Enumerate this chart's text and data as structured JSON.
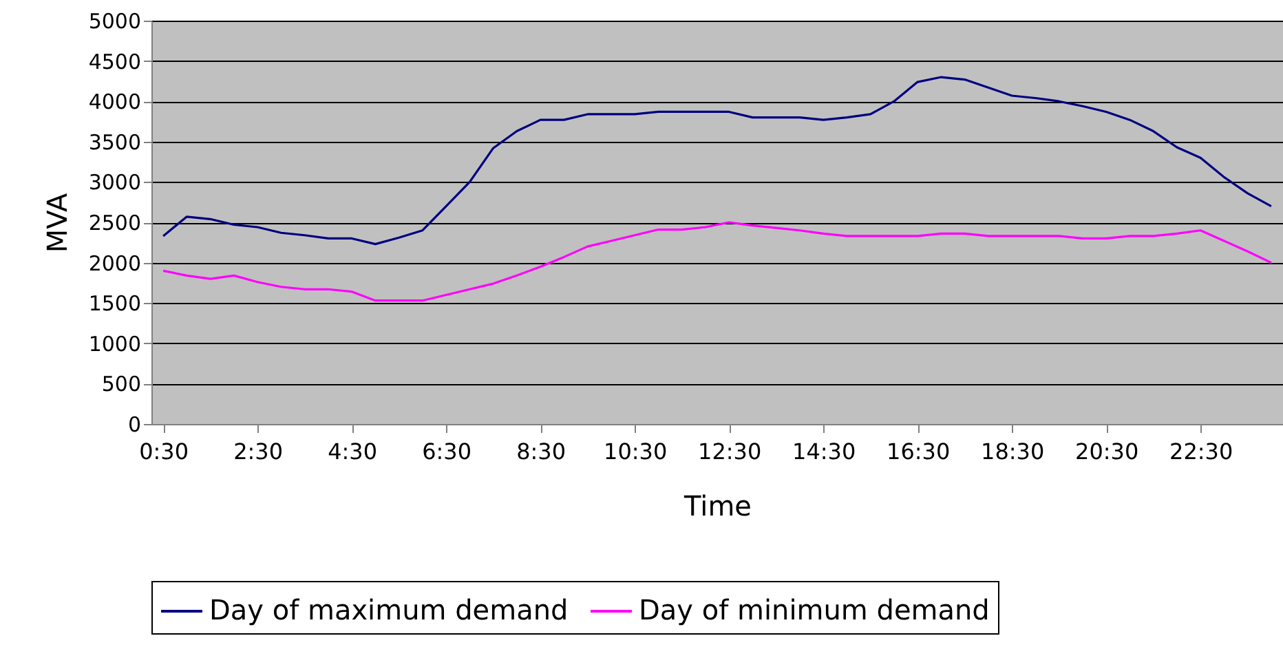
{
  "chart_data": {
    "type": "line",
    "xlabel": "Time",
    "ylabel": "MVA",
    "categories": [
      "0:30",
      null,
      null,
      null,
      "2:30",
      null,
      null,
      null,
      "4:30",
      null,
      null,
      null,
      "6:30",
      null,
      null,
      null,
      "8:30",
      null,
      null,
      null,
      "10:30",
      null,
      null,
      null,
      "12:30",
      null,
      null,
      null,
      "14:30",
      null,
      null,
      null,
      "16:30",
      null,
      null,
      null,
      "18:30",
      null,
      null,
      null,
      "20:30",
      null,
      null,
      null,
      "22:30",
      null,
      null,
      null
    ],
    "series": [
      {
        "name": "Day of maximum demand",
        "color": "#000080",
        "values": [
          2330,
          2570,
          2540,
          2470,
          2440,
          2370,
          2340,
          2300,
          2300,
          2230,
          2310,
          2400,
          2700,
          3000,
          3420,
          3630,
          3770,
          3770,
          3840,
          3840,
          3840,
          3870,
          3870,
          3870,
          3870,
          3800,
          3800,
          3800,
          3770,
          3800,
          3840,
          4000,
          4240,
          4300,
          4270,
          4170,
          4070,
          4040,
          4000,
          3940,
          3870,
          3770,
          3630,
          3430,
          3300,
          3060,
          2860,
          2700
        ]
      },
      {
        "name": "Day of minimum demand",
        "color": "#ff00ff",
        "values": [
          1900,
          1840,
          1800,
          1840,
          1760,
          1700,
          1670,
          1670,
          1640,
          1530,
          1530,
          1530,
          1600,
          1670,
          1740,
          1840,
          1950,
          2070,
          2200,
          2270,
          2340,
          2410,
          2410,
          2440,
          2500,
          2460,
          2430,
          2400,
          2360,
          2330,
          2330,
          2330,
          2330,
          2360,
          2360,
          2330,
          2330,
          2330,
          2330,
          2300,
          2300,
          2330,
          2330,
          2360,
          2400,
          2270,
          2140,
          2000
        ]
      }
    ],
    "ylim": [
      0,
      5000
    ],
    "yticks": [
      0,
      500,
      1000,
      1500,
      2000,
      2500,
      3000,
      3500,
      4000,
      4500,
      5000
    ],
    "grid": "y",
    "legend": "bottom"
  }
}
